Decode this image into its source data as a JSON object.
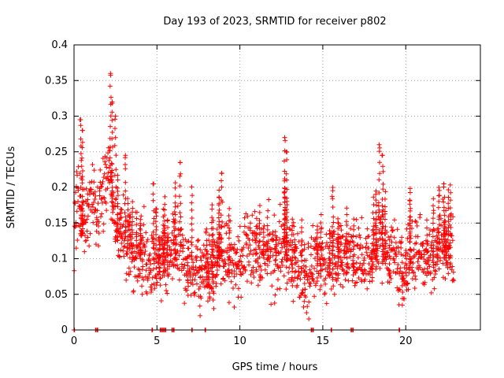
{
  "chart_data": {
    "type": "scatter",
    "title": "Day 193 of 2023, SRMTID for receiver p802",
    "xlabel": "GPS time / hours",
    "ylabel": "SRMTID / TECUs",
    "xlim": [
      0,
      24.5
    ],
    "ylim": [
      0,
      0.4
    ],
    "xticks": [
      {
        "value": 0,
        "label": "0"
      },
      {
        "value": 5,
        "label": "5"
      },
      {
        "value": 10,
        "label": "10"
      },
      {
        "value": 15,
        "label": "15"
      },
      {
        "value": 20,
        "label": "20"
      }
    ],
    "yticks": [
      {
        "value": 0,
        "label": "0"
      },
      {
        "value": 0.05,
        "label": "0.05"
      },
      {
        "value": 0.1,
        "label": "0.1"
      },
      {
        "value": 0.15,
        "label": "0.15"
      },
      {
        "value": 0.2,
        "label": "0.2"
      },
      {
        "value": 0.25,
        "label": "0.25"
      },
      {
        "value": 0.3,
        "label": "0.3"
      },
      {
        "value": 0.35,
        "label": "0.35"
      },
      {
        "value": 0.4,
        "label": "0.4"
      }
    ],
    "grid": true,
    "marker": "plus",
    "series_color": "#ff0000",
    "series": [
      {
        "name": "SRMTID",
        "x_range": [
          0,
          22.9
        ],
        "trend": [
          [
            0.0,
            0.16
          ],
          [
            0.3,
            0.19
          ],
          [
            0.6,
            0.14
          ],
          [
            1.0,
            0.18
          ],
          [
            1.4,
            0.17
          ],
          [
            1.8,
            0.2
          ],
          [
            2.1,
            0.23
          ],
          [
            2.4,
            0.16
          ],
          [
            2.8,
            0.14
          ],
          [
            3.3,
            0.12
          ],
          [
            3.6,
            0.1
          ],
          [
            4.0,
            0.11
          ],
          [
            4.5,
            0.1
          ],
          [
            5.0,
            0.09
          ],
          [
            5.6,
            0.1
          ],
          [
            6.0,
            0.12
          ],
          [
            6.3,
            0.13
          ],
          [
            6.8,
            0.09
          ],
          [
            7.2,
            0.08
          ],
          [
            7.7,
            0.09
          ],
          [
            8.2,
            0.08
          ],
          [
            8.8,
            0.11
          ],
          [
            9.3,
            0.1
          ],
          [
            9.8,
            0.09
          ],
          [
            10.3,
            0.11
          ],
          [
            10.8,
            0.12
          ],
          [
            11.3,
            0.1
          ],
          [
            11.8,
            0.11
          ],
          [
            12.3,
            0.1
          ],
          [
            12.6,
            0.13
          ],
          [
            13.0,
            0.1
          ],
          [
            13.5,
            0.09
          ],
          [
            14.0,
            0.08
          ],
          [
            14.5,
            0.1
          ],
          [
            15.0,
            0.09
          ],
          [
            15.5,
            0.11
          ],
          [
            16.0,
            0.1
          ],
          [
            16.5,
            0.11
          ],
          [
            17.0,
            0.1
          ],
          [
            17.5,
            0.09
          ],
          [
            18.0,
            0.1
          ],
          [
            18.4,
            0.13
          ],
          [
            18.8,
            0.11
          ],
          [
            19.3,
            0.1
          ],
          [
            19.8,
            0.08
          ],
          [
            20.3,
            0.1
          ],
          [
            20.8,
            0.11
          ],
          [
            21.4,
            0.1
          ],
          [
            22.0,
            0.12
          ],
          [
            22.5,
            0.12
          ],
          [
            22.9,
            0.1
          ]
        ],
        "peaks": [
          [
            0.4,
            0.295
          ],
          [
            0.5,
            0.28
          ],
          [
            2.2,
            0.36
          ],
          [
            2.3,
            0.32
          ],
          [
            2.5,
            0.3
          ],
          [
            3.1,
            0.245
          ],
          [
            4.8,
            0.205
          ],
          [
            6.4,
            0.235
          ],
          [
            8.9,
            0.22
          ],
          [
            12.7,
            0.27
          ],
          [
            12.8,
            0.25
          ],
          [
            15.6,
            0.2
          ],
          [
            18.4,
            0.26
          ],
          [
            18.6,
            0.245
          ],
          [
            22.0,
            0.2
          ],
          [
            22.3,
            0.205
          ]
        ],
        "troughs": [
          [
            7.6,
            0.02
          ],
          [
            8.4,
            0.03
          ],
          [
            19.8,
            0.035
          ],
          [
            13.9,
            0.04
          ],
          [
            4.1,
            0.05
          ]
        ],
        "zeros": [
          0.0,
          1.3,
          1.4,
          4.7,
          5.2,
          5.3,
          5.4,
          5.5,
          5.9,
          6.0,
          7.1,
          7.9,
          14.3,
          14.4,
          15.5,
          16.7,
          16.8,
          19.6
        ]
      }
    ]
  }
}
